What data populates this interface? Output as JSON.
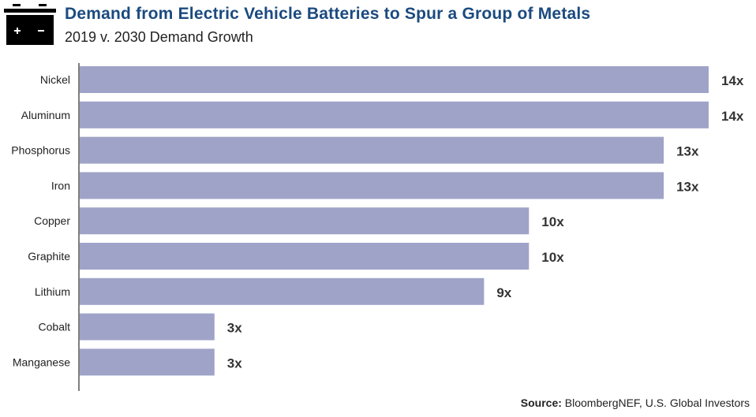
{
  "chart_data": {
    "type": "bar",
    "orientation": "horizontal",
    "title": "Demand from Electric Vehicle Batteries to Spur a Group of Metals",
    "subtitle": "2019 v. 2030 Demand Growth",
    "categories": [
      "Nickel",
      "Aluminum",
      "Phosphorus",
      "Iron",
      "Copper",
      "Graphite",
      "Lithium",
      "Cobalt",
      "Manganese"
    ],
    "values": [
      14,
      14,
      13,
      13,
      10,
      10,
      9,
      3,
      3
    ],
    "data_labels": [
      "14x",
      "14x",
      "13x",
      "13x",
      "10x",
      "10x",
      "9x",
      "3x",
      "3x"
    ],
    "xlim": [
      0,
      14
    ],
    "grid": false,
    "bar_color": "#9fa3c8",
    "title_color": "#1b4a80"
  },
  "source_label": "Source:",
  "source_text": " BloombergNEF, U.S. Global Investors",
  "icon": "battery-icon"
}
